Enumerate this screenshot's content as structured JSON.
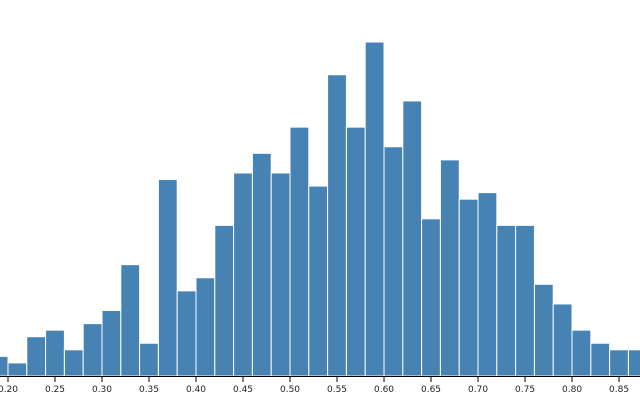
{
  "chart_data": {
    "type": "histogram",
    "bins": [
      0.18,
      0.2,
      0.22,
      0.24,
      0.26,
      0.28,
      0.3,
      0.32,
      0.34,
      0.36,
      0.38,
      0.4,
      0.42,
      0.44,
      0.46,
      0.48,
      0.5,
      0.52,
      0.54,
      0.56,
      0.58,
      0.6,
      0.62,
      0.64,
      0.66,
      0.68,
      0.7,
      0.72,
      0.74,
      0.76,
      0.78,
      0.8,
      0.82,
      0.84,
      0.86,
      0.88
    ],
    "values": [
      3,
      2,
      6,
      7,
      4,
      8,
      10,
      17,
      5,
      30,
      13,
      15,
      23,
      31,
      34,
      31,
      38,
      29,
      46,
      38,
      51,
      35,
      42,
      24,
      33,
      27,
      28,
      23,
      23,
      14,
      11,
      7,
      5,
      4,
      4
    ],
    "color": "#4682b4",
    "xlim": [
      0.1915,
      0.8723
    ],
    "ylim": [
      0,
      51
    ],
    "xticks": [
      {
        "value": 0.2,
        "label": "0.20"
      },
      {
        "value": 0.25,
        "label": "0.25"
      },
      {
        "value": 0.3,
        "label": "0.30"
      },
      {
        "value": 0.35,
        "label": "0.35"
      },
      {
        "value": 0.4,
        "label": "0.40"
      },
      {
        "value": 0.45,
        "label": "0.45"
      },
      {
        "value": 0.5,
        "label": "0.50"
      },
      {
        "value": 0.55,
        "label": "0.55"
      },
      {
        "value": 0.6,
        "label": "0.60"
      },
      {
        "value": 0.65,
        "label": "0.65"
      },
      {
        "value": 0.7,
        "label": "0.70"
      },
      {
        "value": 0.75,
        "label": "0.75"
      },
      {
        "value": 0.8,
        "label": "0.80"
      },
      {
        "value": 0.85,
        "label": "0.85"
      }
    ]
  }
}
